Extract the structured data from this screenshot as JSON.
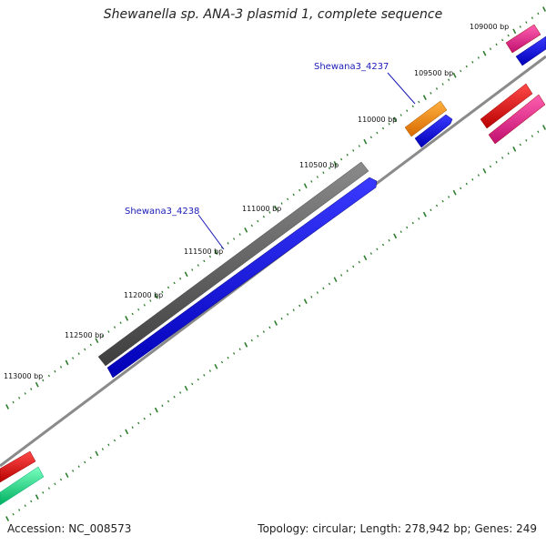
{
  "title": "Shewanella sp. ANA-3 plasmid 1, complete sequence",
  "footer": {
    "accession": "Accession: NC_008573",
    "summary": "Topology: circular; Length: 278,942 bp; Genes: 249"
  },
  "tick_labels": [
    "109000 bp",
    "109500 bp",
    "110000 bp",
    "110500 bp",
    "111000 bp",
    "111500 bp",
    "112000 bp",
    "112500 bp",
    "113000 bp"
  ],
  "gene_labels": [
    "Shewana3_4237",
    "Shewana3_4238"
  ],
  "colors": {
    "backbone": "#7f7f7f",
    "tick": "#2e7d2e",
    "gray_gene": "#5f5f5f",
    "blue_gene": "#0a0aee",
    "orange_gene": "#ff8c00",
    "pink_gene": "#e8258a",
    "red_gene": "#ee1111",
    "green_gene": "#1fe08a",
    "label_link": "#1a1ab8"
  }
}
